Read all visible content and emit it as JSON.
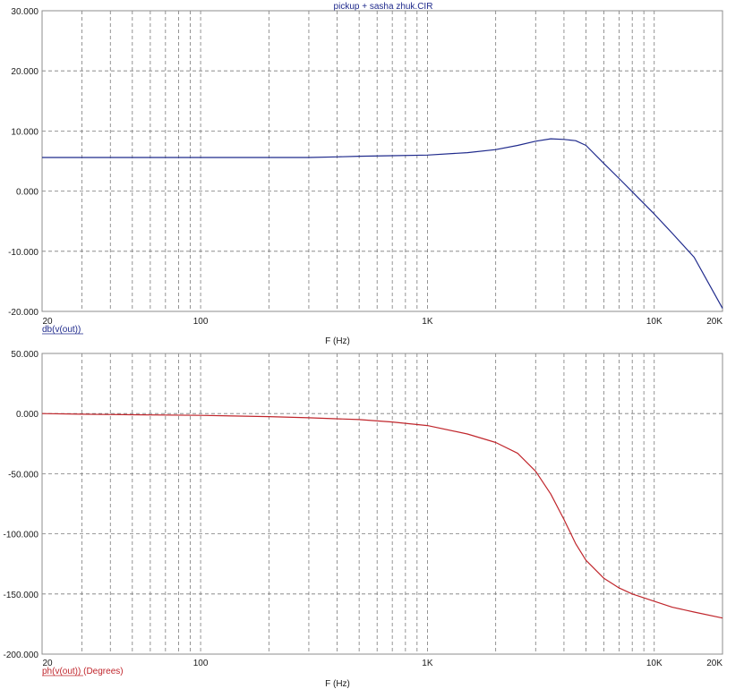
{
  "window_title": "pickup + sasha zhuk.CIR",
  "chart_data": [
    {
      "type": "line",
      "title": "pickup + sasha zhuk.CIR",
      "xlabel": "F (Hz)",
      "ylabel": "",
      "xscale": "log",
      "xlim": [
        20,
        20000
      ],
      "ylim": [
        -20,
        30
      ],
      "x_tick_labels": [
        {
          "v": 20,
          "t": "20"
        },
        {
          "v": 100,
          "t": "100"
        },
        {
          "v": 1000,
          "t": "1K"
        },
        {
          "v": 10000,
          "t": "10K"
        },
        {
          "v": 20000,
          "t": "20K"
        }
      ],
      "y_ticks": [
        30,
        20,
        10,
        0,
        -10,
        -20
      ],
      "y_tick_labels": [
        "30.000",
        "20.000",
        "10.000",
        "0.000",
        "-10.000",
        "-20.000"
      ],
      "grid": true,
      "series": [
        {
          "name": "db(v(out))",
          "color": "#1f2a8c",
          "x": [
            20,
            50,
            100,
            200,
            300,
            400,
            500,
            700,
            1000,
            1500,
            2000,
            2500,
            3000,
            3500,
            4000,
            4500,
            5000,
            6000,
            7000,
            8000,
            10000,
            12000,
            15000,
            20000
          ],
          "y": [
            5.6,
            5.6,
            5.6,
            5.6,
            5.6,
            5.7,
            5.8,
            5.9,
            6.0,
            6.4,
            6.9,
            7.6,
            8.3,
            8.7,
            8.6,
            8.4,
            7.6,
            4.6,
            2.1,
            -0.1,
            -3.8,
            -7.0,
            -11.0,
            -19.5
          ]
        }
      ]
    },
    {
      "type": "line",
      "title": "",
      "xlabel": "F (Hz)",
      "ylabel": "",
      "xscale": "log",
      "xlim": [
        20,
        20000
      ],
      "ylim": [
        -200,
        50
      ],
      "x_tick_labels": [
        {
          "v": 20,
          "t": "20"
        },
        {
          "v": 100,
          "t": "100"
        },
        {
          "v": 1000,
          "t": "1K"
        },
        {
          "v": 10000,
          "t": "10K"
        },
        {
          "v": 20000,
          "t": "20K"
        }
      ],
      "y_ticks": [
        50,
        0,
        -50,
        -100,
        -150,
        -200
      ],
      "y_tick_labels": [
        "50.000",
        "0.000",
        "-50.000",
        "-100.000",
        "-150.000",
        "-200.000"
      ],
      "grid": true,
      "series": [
        {
          "name": "ph(v(out)) (Degrees)",
          "color": "#c0262c",
          "x": [
            20,
            30,
            50,
            100,
            200,
            300,
            500,
            700,
            1000,
            1500,
            2000,
            2500,
            3000,
            3500,
            4000,
            4500,
            5000,
            6000,
            7000,
            8000,
            10000,
            12000,
            15000,
            20000
          ],
          "y": [
            0,
            -0.5,
            -1,
            -1.5,
            -2.5,
            -3.5,
            -5,
            -7,
            -10,
            -17,
            -24,
            -33,
            -48,
            -67,
            -88,
            -108,
            -122,
            -137,
            -145,
            -150,
            -156,
            -161,
            -165,
            -170
          ]
        }
      ]
    }
  ]
}
